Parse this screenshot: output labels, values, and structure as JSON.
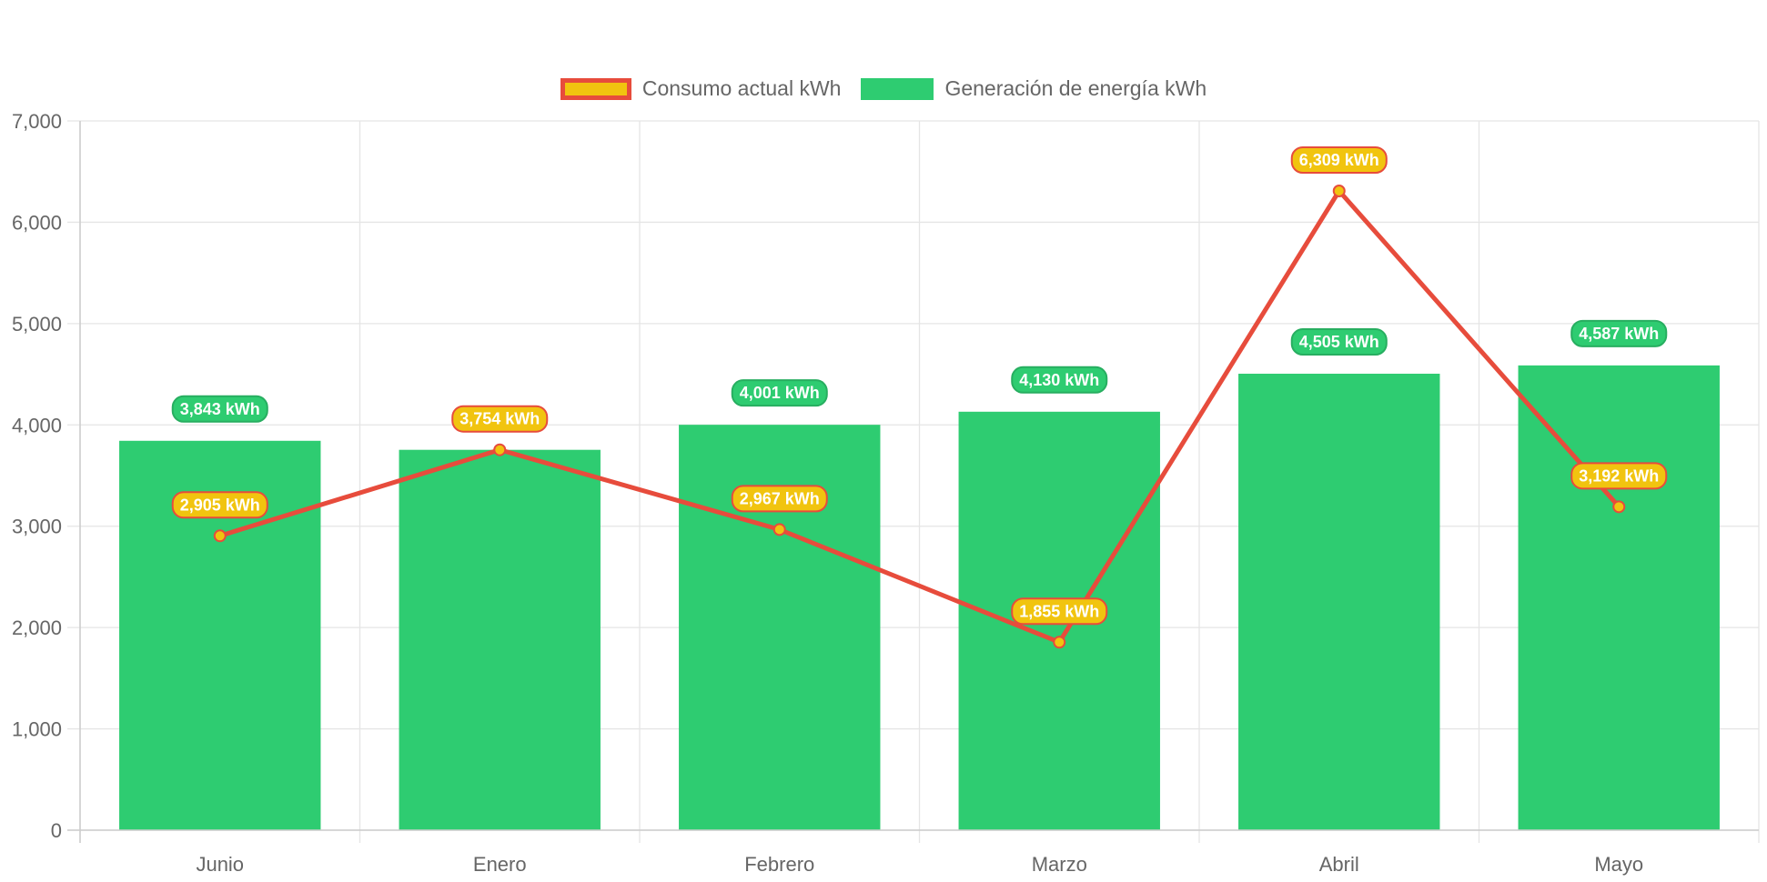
{
  "chart_data": {
    "type": "bar",
    "categories": [
      "Junio",
      "Enero",
      "Febrero",
      "Marzo",
      "Abril",
      "Mayo"
    ],
    "series": [
      {
        "name": "Consumo actual kWh",
        "type": "line",
        "values": [
          2905,
          3754,
          2967,
          1855,
          6309,
          3192
        ],
        "labels": [
          "2,905 kWh",
          "3,754 kWh",
          "2,967 kWh",
          "1,855 kWh",
          "6,309 kWh",
          "3,192 kWh"
        ],
        "color": "#e74c3c",
        "fill": "#f1c40f"
      },
      {
        "name": "Generación de energía kWh",
        "type": "bar",
        "values": [
          3843,
          3754,
          4001,
          4130,
          4505,
          4587
        ],
        "labels": [
          "3,843 kWh",
          "3,754 kWh",
          "4,001 kWh",
          "4,130 kWh",
          "4,505 kWh",
          "4,587 kWh"
        ],
        "color": "#2ecc71"
      }
    ],
    "ylim": [
      0,
      7000
    ],
    "yticks": [
      0,
      1000,
      2000,
      3000,
      4000,
      5000,
      6000,
      7000
    ],
    "ytick_labels": [
      "0",
      "1,000",
      "2,000",
      "3,000",
      "4,000",
      "5,000",
      "6,000",
      "7,000"
    ],
    "grid": true,
    "legend_position": "top-center",
    "title": "",
    "xlabel": "",
    "ylabel": ""
  }
}
